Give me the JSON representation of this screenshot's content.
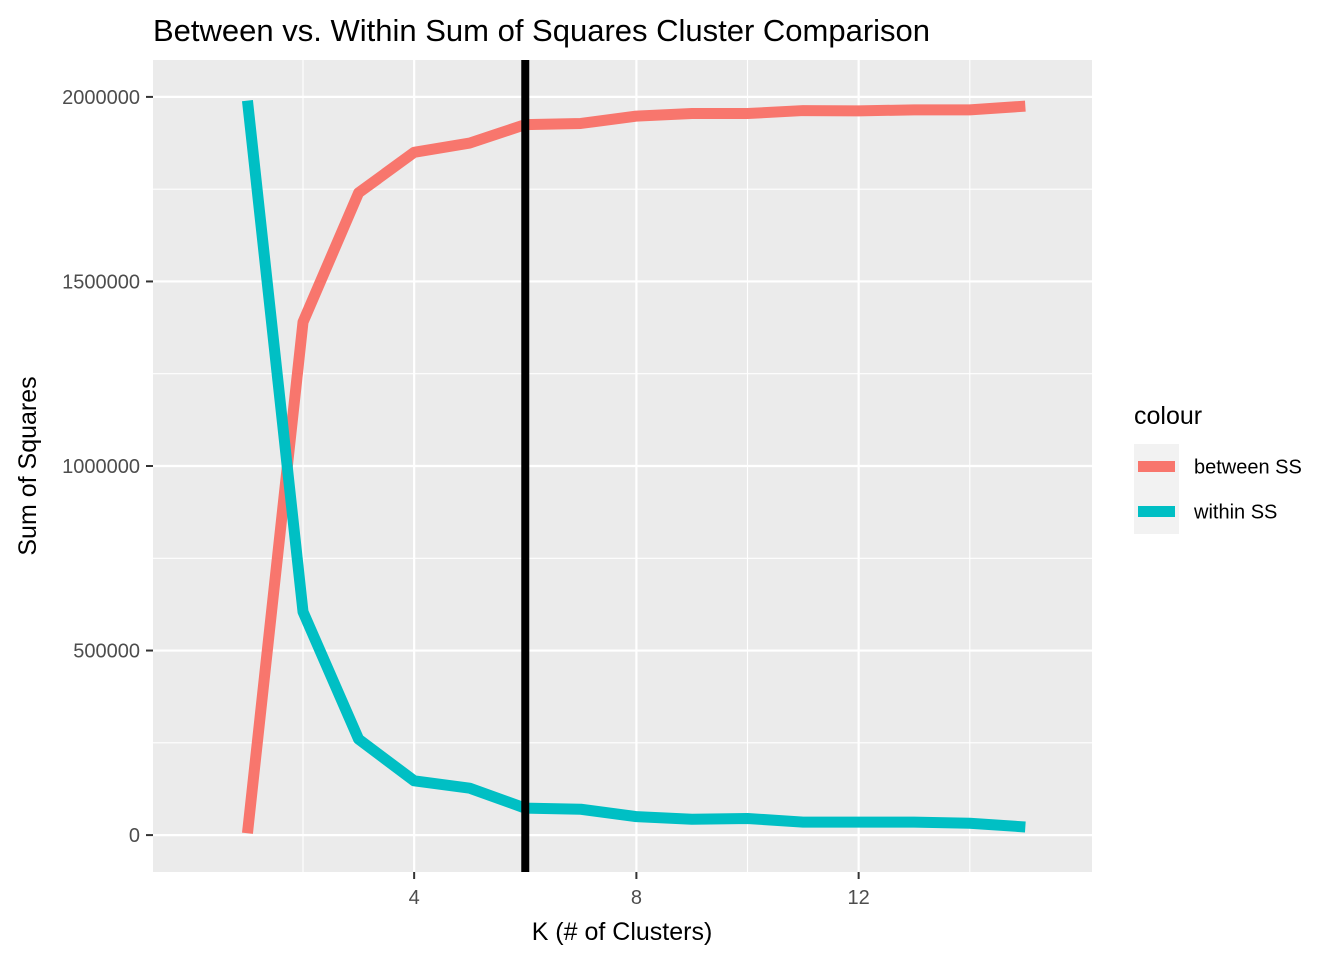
{
  "chart_data": {
    "type": "line",
    "title": "Between vs. Within Sum of Squares Cluster Comparison",
    "xlabel": "K (# of Clusters)",
    "ylabel": "Sum of Squares",
    "x": [
      1,
      2,
      3,
      4,
      5,
      6,
      7,
      8,
      9,
      10,
      11,
      12,
      13,
      14,
      15
    ],
    "xlim": [
      -0.7,
      16.2
    ],
    "ylim": [
      -100000,
      2100000
    ],
    "x_ticks": [
      4,
      8,
      12
    ],
    "x_tick_labels": [
      "4",
      "8",
      "12"
    ],
    "y_ticks": [
      0,
      500000,
      1000000,
      1500000,
      2000000
    ],
    "y_tick_labels": [
      "0",
      "500000",
      "1000000",
      "1500000",
      "2000000"
    ],
    "vline": 6,
    "grid": true,
    "legend": {
      "title": "colour",
      "position": "right"
    },
    "series": [
      {
        "name": "between SS",
        "color": "#F8766D",
        "values": [
          5000,
          1390000,
          1740000,
          1850000,
          1875000,
          1925000,
          1928000,
          1948000,
          1955000,
          1955000,
          1963000,
          1962000,
          1965000,
          1965000,
          1975000
        ]
      },
      {
        "name": "within SS",
        "color": "#00BFC4",
        "values": [
          1990000,
          605000,
          260000,
          147000,
          127000,
          73000,
          70000,
          50000,
          43000,
          45000,
          35000,
          35000,
          35000,
          32000,
          22000
        ]
      }
    ]
  }
}
